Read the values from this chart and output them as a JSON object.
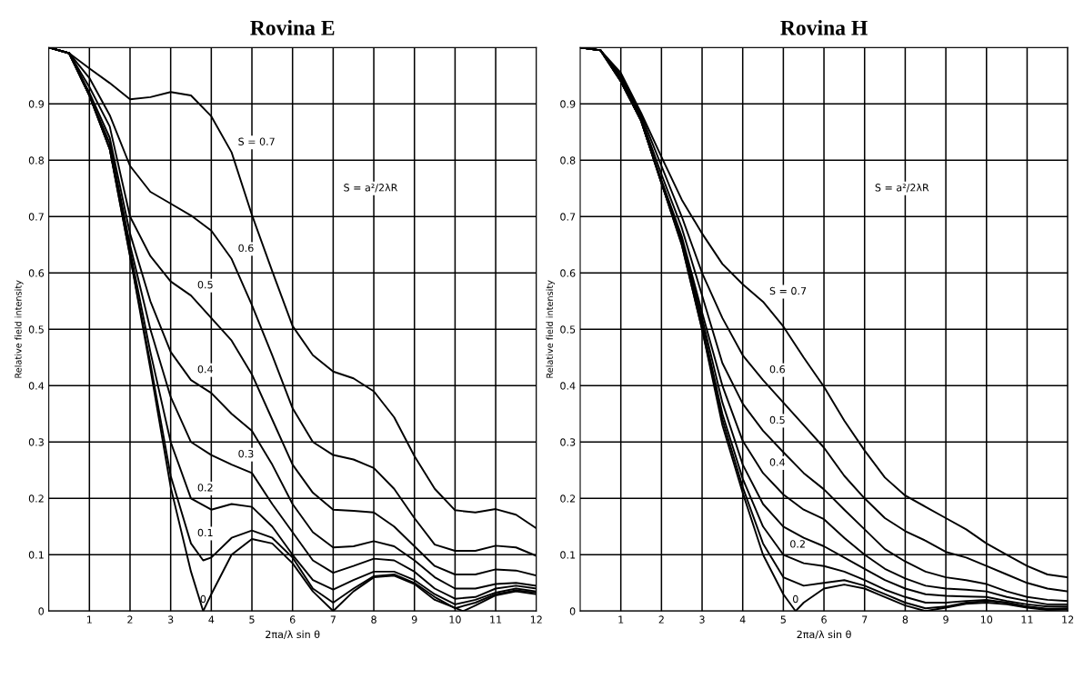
{
  "chart_data": [
    {
      "type": "line",
      "title": "Rovina E",
      "xlabel": "2πa/λ sin θ",
      "ylabel": "Relative field intensity",
      "x": [
        0,
        0.5,
        1,
        1.5,
        2,
        2.5,
        3,
        3.5,
        4,
        4.5,
        5,
        5.5,
        6,
        6.5,
        7,
        7.5,
        8,
        8.5,
        9,
        9.5,
        10,
        10.5,
        11,
        11.5,
        12
      ],
      "xlim": [
        0,
        12
      ],
      "ylim": [
        0,
        1
      ],
      "xticks": [
        1,
        2,
        3,
        4,
        5,
        6,
        7,
        8,
        9,
        10,
        11,
        12
      ],
      "yticks": [
        0,
        0.1,
        0.2,
        0.3,
        0.4,
        0.5,
        0.6,
        0.7,
        0.8,
        0.9,
        {
          "value": 1,
          "label": null
        }
      ],
      "grid": true,
      "legend": false,
      "marker": "none",
      "line_style": "solid",
      "series": [
        {
          "color": "#000000",
          "values": [
            1,
            0.99,
            0.963,
            0.937,
            0.908,
            0.912,
            0.921,
            0.915,
            0.878,
            0.814,
            0.703,
            0.603,
            0.506,
            0.454,
            0.425,
            0.413,
            0.39,
            0.344,
            0.275,
            0.217,
            0.179,
            0.175,
            0.181,
            0.171,
            0.147
          ]
        },
        {
          "color": "#000000",
          "values": [
            1,
            0.99,
            0.946,
            0.88,
            0.79,
            0.744,
            0.723,
            0.702,
            0.675,
            0.625,
            0.543,
            0.454,
            0.36,
            0.3,
            0.277,
            0.269,
            0.254,
            0.217,
            0.165,
            0.118,
            0.107,
            0.107,
            0.116,
            0.113,
            0.098
          ]
        },
        {
          "color": "#000000",
          "values": [
            1,
            0.99,
            0.93,
            0.86,
            0.7,
            0.63,
            0.585,
            0.56,
            0.52,
            0.48,
            0.42,
            0.34,
            0.26,
            0.21,
            0.18,
            0.178,
            0.175,
            0.15,
            0.115,
            0.08,
            0.065,
            0.065,
            0.074,
            0.072,
            0.063
          ]
        },
        {
          "color": "#000000",
          "values": [
            1,
            0.99,
            0.92,
            0.84,
            0.67,
            0.55,
            0.46,
            0.41,
            0.387,
            0.35,
            0.32,
            0.26,
            0.19,
            0.14,
            0.113,
            0.115,
            0.124,
            0.115,
            0.09,
            0.06,
            0.04,
            0.04,
            0.048,
            0.05,
            0.045
          ]
        },
        {
          "color": "#000000",
          "values": [
            1,
            0.99,
            0.915,
            0.83,
            0.65,
            0.5,
            0.38,
            0.3,
            0.277,
            0.26,
            0.245,
            0.19,
            0.14,
            0.09,
            0.068,
            0.08,
            0.093,
            0.09,
            0.07,
            0.04,
            0.022,
            0.025,
            0.04,
            0.045,
            0.04
          ]
        },
        {
          "color": "#000000",
          "values": [
            1,
            0.99,
            0.915,
            0.82,
            0.64,
            0.46,
            0.3,
            0.2,
            0.18,
            0.19,
            0.185,
            0.15,
            0.1,
            0.055,
            0.038,
            0.055,
            0.07,
            0.07,
            0.055,
            0.03,
            0.012,
            0.02,
            0.033,
            0.04,
            0.035
          ]
        },
        {
          "color": "#000000",
          "x": [
            0,
            0.5,
            1,
            1.5,
            2,
            2.5,
            3,
            3.5,
            3.8,
            4,
            4.5,
            5,
            5.5,
            6,
            6.5,
            7,
            7.5,
            8,
            8.5,
            9,
            9.5,
            10,
            10.5,
            11,
            11.5,
            12
          ],
          "values": [
            1,
            0.99,
            0.915,
            0.82,
            0.63,
            0.44,
            0.24,
            0.12,
            0.09,
            0.095,
            0.13,
            0.143,
            0.13,
            0.095,
            0.04,
            0.015,
            0.04,
            0.062,
            0.065,
            0.05,
            0.025,
            0.005,
            0.015,
            0.03,
            0.037,
            0.033
          ]
        },
        {
          "color": "#000000",
          "x": [
            0,
            0.5,
            1,
            1.5,
            2,
            2.5,
            3,
            3.5,
            3.8,
            4,
            4.5,
            5,
            5.5,
            6,
            6.5,
            7,
            7.5,
            8,
            8.5,
            9,
            9.5,
            10.2,
            10.5,
            11,
            11.5,
            12
          ],
          "values": [
            1,
            0.99,
            0.915,
            0.82,
            0.63,
            0.43,
            0.22,
            0.07,
            0,
            0.03,
            0.1,
            0.128,
            0.12,
            0.085,
            0.035,
            0,
            0.035,
            0.06,
            0.063,
            0.048,
            0.02,
            0,
            0.01,
            0.028,
            0.035,
            0.03
          ]
        }
      ],
      "annotations": [
        {
          "text": "S = 0.7",
          "x": 4.5,
          "y": 0.814
        },
        {
          "text": "0.6",
          "x": 4.5,
          "y": 0.625
        },
        {
          "text": "0.5",
          "x": 3.5,
          "y": 0.56
        },
        {
          "text": "0.4",
          "x": 3.5,
          "y": 0.41
        },
        {
          "text": "0.3",
          "x": 4.5,
          "y": 0.26
        },
        {
          "text": "0.2",
          "x": 3.5,
          "y": 0.2
        },
        {
          "text": "0.1",
          "x": 3.5,
          "y": 0.12
        },
        {
          "text": "0",
          "x": 3.8,
          "y": 0
        },
        "S = a²/2λR"
      ]
    },
    {
      "type": "line",
      "title": "Rovina H",
      "xlabel": "2πa/λ sin θ",
      "ylabel": "Relative field intensity",
      "x": [
        0,
        0.5,
        1,
        1.5,
        2,
        2.5,
        3,
        3.5,
        4,
        4.5,
        5,
        5.5,
        6,
        6.5,
        7,
        7.5,
        8,
        8.5,
        9,
        9.5,
        10,
        10.5,
        11,
        11.5,
        12
      ],
      "xlim": [
        0,
        12
      ],
      "ylim": [
        0,
        1
      ],
      "xticks": [
        1,
        2,
        3,
        4,
        5,
        6,
        7,
        8,
        9,
        10,
        11,
        12
      ],
      "yticks": [
        0,
        0.1,
        0.2,
        0.3,
        0.4,
        0.5,
        0.6,
        0.7,
        0.8,
        0.9,
        {
          "value": 1,
          "label": null
        }
      ],
      "grid": true,
      "legend": false,
      "marker": "none",
      "line_style": "solid",
      "series": [
        {
          "color": "#000000",
          "values": [
            1,
            0.995,
            0.955,
            0.884,
            0.806,
            0.73,
            0.67,
            0.616,
            0.58,
            0.549,
            0.505,
            0.45,
            0.398,
            0.338,
            0.285,
            0.237,
            0.205,
            0.185,
            0.165,
            0.145,
            0.12,
            0.1,
            0.08,
            0.065,
            0.06
          ]
        },
        {
          "color": "#000000",
          "values": [
            1,
            0.995,
            0.95,
            0.88,
            0.79,
            0.7,
            0.6,
            0.52,
            0.454,
            0.41,
            0.37,
            0.33,
            0.29,
            0.24,
            0.2,
            0.165,
            0.142,
            0.125,
            0.105,
            0.095,
            0.08,
            0.065,
            0.05,
            0.04,
            0.035
          ]
        },
        {
          "color": "#000000",
          "values": [
            1,
            0.995,
            0.95,
            0.875,
            0.775,
            0.68,
            0.56,
            0.44,
            0.368,
            0.32,
            0.282,
            0.245,
            0.216,
            0.18,
            0.145,
            0.11,
            0.088,
            0.07,
            0.06,
            0.055,
            0.048,
            0.035,
            0.025,
            0.02,
            0.018
          ]
        },
        {
          "color": "#000000",
          "values": [
            1,
            0.995,
            0.945,
            0.87,
            0.765,
            0.665,
            0.53,
            0.4,
            0.302,
            0.245,
            0.207,
            0.18,
            0.163,
            0.13,
            0.1,
            0.075,
            0.058,
            0.045,
            0.04,
            0.038,
            0.035,
            0.025,
            0.018,
            0.012,
            0.012
          ]
        },
        {
          "color": "#000000",
          "values": [
            1,
            0.995,
            0.94,
            0.87,
            0.76,
            0.66,
            0.52,
            0.37,
            0.26,
            0.19,
            0.15,
            0.13,
            0.115,
            0.095,
            0.075,
            0.055,
            0.04,
            0.03,
            0.027,
            0.026,
            0.025,
            0.018,
            0.012,
            0.008,
            0.008
          ]
        },
        {
          "color": "#000000",
          "values": [
            1,
            0.995,
            0.94,
            0.87,
            0.76,
            0.655,
            0.51,
            0.35,
            0.235,
            0.15,
            0.1,
            0.085,
            0.08,
            0.07,
            0.055,
            0.038,
            0.025,
            0.015,
            0.015,
            0.018,
            0.02,
            0.015,
            0.008,
            0.004,
            0.005
          ]
        },
        {
          "color": "#000000",
          "values": [
            1,
            0.995,
            0.94,
            0.87,
            0.76,
            0.65,
            0.5,
            0.34,
            0.22,
            0.12,
            0.06,
            0.045,
            0.05,
            0.055,
            0.045,
            0.03,
            0.015,
            0.005,
            0.008,
            0.015,
            0.018,
            0.015,
            0.008,
            0.003,
            0.004
          ]
        },
        {
          "color": "#000000",
          "x": [
            0,
            0.5,
            1,
            1.5,
            2,
            2.5,
            3,
            3.5,
            4,
            4.5,
            5,
            5.3,
            5.5,
            6,
            6.5,
            7,
            7.5,
            8,
            8.5,
            9,
            9.5,
            10,
            10.5,
            11,
            11.5,
            12
          ],
          "values": [
            1,
            0.995,
            0.94,
            0.87,
            0.76,
            0.65,
            0.5,
            0.33,
            0.21,
            0.1,
            0.03,
            0,
            0.015,
            0.04,
            0.047,
            0.04,
            0.025,
            0.01,
            0,
            0.006,
            0.013,
            0.015,
            0.012,
            0.006,
            0.002,
            0.003
          ]
        }
      ],
      "annotations": [
        {
          "text": "S = 0.7",
          "x": 4.5,
          "y": 0.549
        },
        {
          "text": "0.6",
          "x": 4.5,
          "y": 0.41
        },
        {
          "text": "0.5",
          "x": 4.5,
          "y": 0.32
        },
        {
          "text": "0.4",
          "x": 4.5,
          "y": 0.245
        },
        {
          "text": "0.2",
          "x": 5,
          "y": 0.1
        },
        {
          "text": "0",
          "x": 5.3,
          "y": 0
        },
        "S = a²/2λR"
      ]
    }
  ]
}
